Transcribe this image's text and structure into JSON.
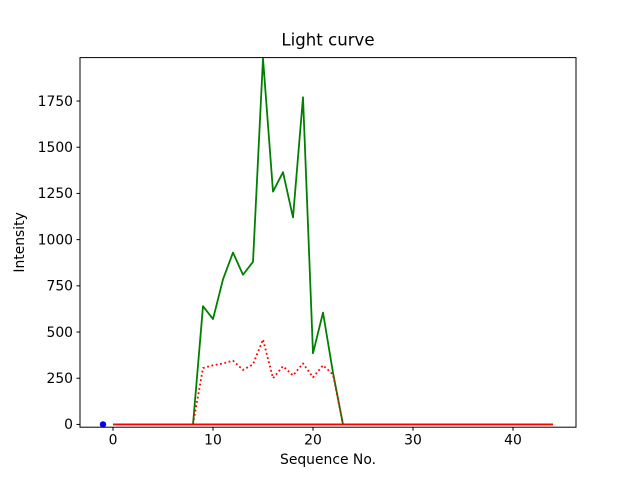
{
  "figure": {
    "background": "#ffffff",
    "frame_color": "#000000"
  },
  "chart_data": {
    "type": "line",
    "title": "Light curve",
    "xlabel": "Sequence No.",
    "ylabel": "Intensity",
    "xlim": [
      -3.3,
      46.3
    ],
    "ylim": [
      -15,
      1985
    ],
    "xticks": [
      0,
      10,
      20,
      30,
      40
    ],
    "yticks": [
      0,
      250,
      500,
      750,
      1000,
      1250,
      1500,
      1750
    ],
    "grid": false,
    "legend_position": "none",
    "series": [
      {
        "name": "green-solid-curve",
        "color": "#008000",
        "style": "solid",
        "width": 1.8,
        "x": [
          8,
          9,
          10,
          11,
          12,
          13,
          14,
          15,
          16,
          17,
          18,
          19,
          20,
          21,
          22,
          23
        ],
        "y": [
          0,
          640,
          570,
          785,
          930,
          810,
          880,
          1980,
          1260,
          1365,
          1120,
          1770,
          385,
          605,
          280,
          0
        ]
      },
      {
        "name": "red-dotted-curve",
        "color": "#ff0000",
        "style": "dotted",
        "width": 1.8,
        "x": [
          8,
          9,
          10,
          11,
          12,
          13,
          14,
          15,
          16,
          17,
          18,
          19,
          20,
          21,
          22,
          23
        ],
        "y": [
          0,
          305,
          320,
          330,
          345,
          295,
          325,
          460,
          250,
          315,
          265,
          330,
          255,
          320,
          270,
          0
        ]
      },
      {
        "name": "blue-point-marker",
        "color": "#0000ff",
        "style": "marker",
        "marker_size": 3.2,
        "x": [
          -1
        ],
        "y": [
          0
        ]
      },
      {
        "name": "red-solid-baseline",
        "color": "#ff0000",
        "style": "solid",
        "width": 1.8,
        "x": [
          0,
          44
        ],
        "y": [
          0,
          0
        ]
      }
    ]
  }
}
